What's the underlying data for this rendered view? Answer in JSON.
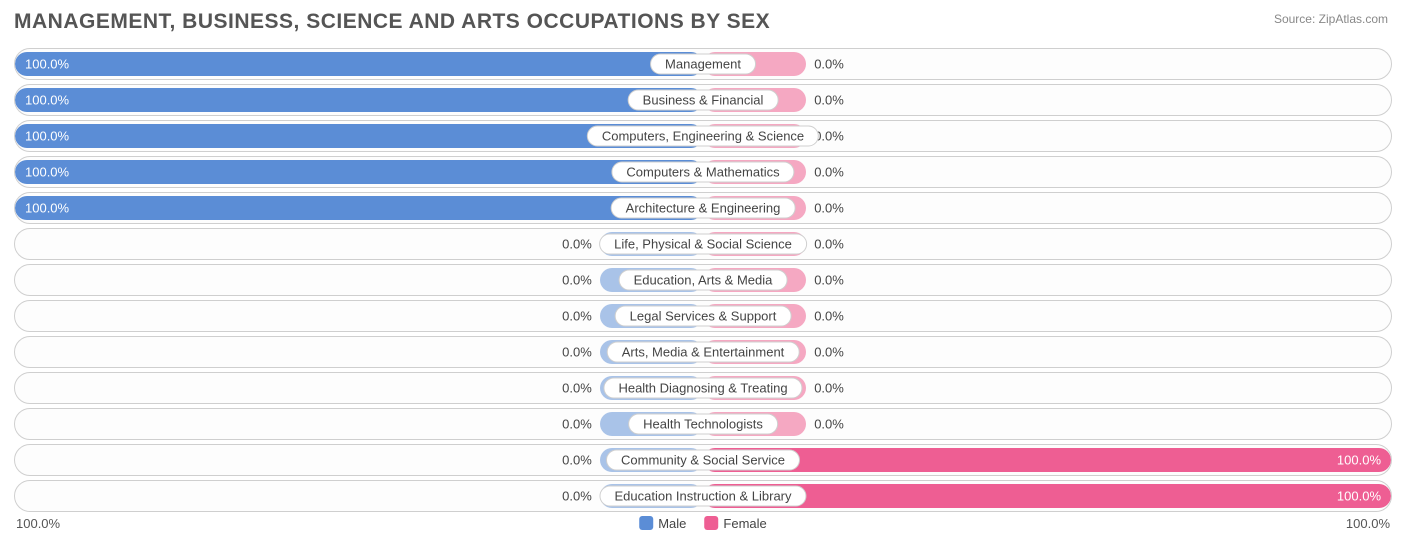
{
  "title": "MANAGEMENT, BUSINESS, SCIENCE AND ARTS OCCUPATIONS BY SEX",
  "source": "Source: ZipAtlas.com",
  "axis": {
    "left": "100.0%",
    "right": "100.0%"
  },
  "legend": {
    "male": {
      "label": "Male",
      "color": "#5b8dd6"
    },
    "female": {
      "label": "Female",
      "color": "#ee5e93"
    }
  },
  "colors": {
    "male_strong": "#5b8dd6",
    "male_light": "#a9c3e8",
    "female_strong": "#ee5e93",
    "female_light": "#f5a8c2",
    "track_border": "#cfcfcf",
    "track_bg": "#fdfdfd",
    "text": "#444444"
  },
  "short_bar_pct": 15,
  "rows": [
    {
      "label": "Management",
      "male_pct": 100.0,
      "female_pct": 0.0,
      "male_text": "100.0%",
      "female_text": "0.0%"
    },
    {
      "label": "Business & Financial",
      "male_pct": 100.0,
      "female_pct": 0.0,
      "male_text": "100.0%",
      "female_text": "0.0%"
    },
    {
      "label": "Computers, Engineering & Science",
      "male_pct": 100.0,
      "female_pct": 0.0,
      "male_text": "100.0%",
      "female_text": "0.0%"
    },
    {
      "label": "Computers & Mathematics",
      "male_pct": 100.0,
      "female_pct": 0.0,
      "male_text": "100.0%",
      "female_text": "0.0%"
    },
    {
      "label": "Architecture & Engineering",
      "male_pct": 100.0,
      "female_pct": 0.0,
      "male_text": "100.0%",
      "female_text": "0.0%"
    },
    {
      "label": "Life, Physical & Social Science",
      "male_pct": 0.0,
      "female_pct": 0.0,
      "male_text": "0.0%",
      "female_text": "0.0%"
    },
    {
      "label": "Education, Arts & Media",
      "male_pct": 0.0,
      "female_pct": 0.0,
      "male_text": "0.0%",
      "female_text": "0.0%"
    },
    {
      "label": "Legal Services & Support",
      "male_pct": 0.0,
      "female_pct": 0.0,
      "male_text": "0.0%",
      "female_text": "0.0%"
    },
    {
      "label": "Arts, Media & Entertainment",
      "male_pct": 0.0,
      "female_pct": 0.0,
      "male_text": "0.0%",
      "female_text": "0.0%"
    },
    {
      "label": "Health Diagnosing & Treating",
      "male_pct": 0.0,
      "female_pct": 0.0,
      "male_text": "0.0%",
      "female_text": "0.0%"
    },
    {
      "label": "Health Technologists",
      "male_pct": 0.0,
      "female_pct": 0.0,
      "male_text": "0.0%",
      "female_text": "0.0%"
    },
    {
      "label": "Community & Social Service",
      "male_pct": 0.0,
      "female_pct": 100.0,
      "male_text": "0.0%",
      "female_text": "100.0%"
    },
    {
      "label": "Education Instruction & Library",
      "male_pct": 0.0,
      "female_pct": 100.0,
      "male_text": "0.0%",
      "female_text": "100.0%"
    }
  ]
}
